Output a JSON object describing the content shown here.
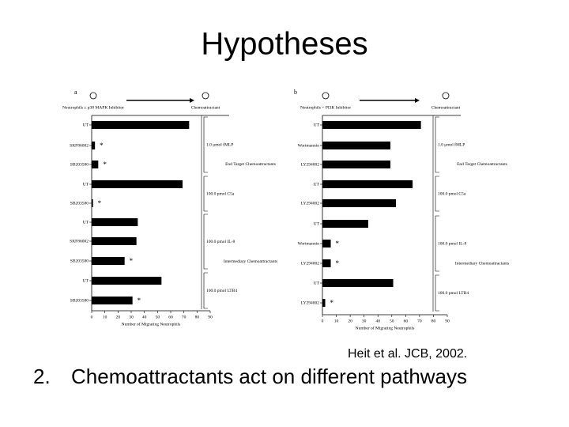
{
  "title": "Hypotheses",
  "citation": "Heit et al. JCB, 2002.",
  "bullet": {
    "number": "2.",
    "text": "Chemoattractants act on different pathways"
  },
  "chart_data": [
    {
      "type": "bar",
      "orientation": "horizontal",
      "panel": "a",
      "header_left": "Neutrophils ± p38 MAPK Inhibitor",
      "header_right": "Chemoattractant",
      "x_label": "Number of Migrating Neutrophils",
      "categories": [
        "UT",
        "SKF86002",
        "SB203580",
        "UT",
        "SB203580",
        "UT",
        "SKF86002",
        "SB203580",
        "UT",
        "SB203580"
      ],
      "values": [
        74,
        2.5,
        5,
        69,
        1,
        35,
        34,
        25,
        53,
        31
      ],
      "significance": [
        null,
        "*",
        "*",
        null,
        "*",
        null,
        null,
        "*",
        null,
        "*"
      ],
      "groups": [
        "1.0 μmol fMLP",
        "100.0 pmol C5a",
        "100.0 pmol IL-8",
        "100.0 pmol LTB4"
      ],
      "classes": [
        "End Target Chemoattractants",
        "Intermediary Chemoattractants"
      ],
      "color": "#000000",
      "xlim": [
        0,
        90
      ],
      "xticks": [
        0,
        10,
        20,
        30,
        40,
        50,
        60,
        70,
        80,
        90
      ]
    },
    {
      "type": "bar",
      "orientation": "horizontal",
      "panel": "b",
      "header_left": "Neutrophils + PI3K Inhibitor",
      "header_right": "Chemoattractant",
      "x_label": "Number of Migrating Neutrophils",
      "categories": [
        "UT",
        "Wortmannin",
        "LY294002",
        "UT",
        "LY294002",
        "UT",
        "Wortmannin",
        "LY294002",
        "UT",
        "LY294002"
      ],
      "values": [
        71,
        49,
        49,
        65,
        53,
        33,
        6,
        6,
        51,
        2
      ],
      "significance": [
        null,
        null,
        null,
        null,
        null,
        null,
        "*",
        "*",
        null,
        "*"
      ],
      "groups": [
        "1.0 μmol fMLP",
        "100.0 pmol C5a",
        "100.0 pmol IL-8",
        "100.0 pmol LTB4"
      ],
      "classes": [
        "End Target Chemoattractants",
        "Intermediary Chemoattractants"
      ],
      "color": "#000000",
      "xlim": [
        0,
        90
      ],
      "xticks": [
        0,
        10,
        20,
        30,
        40,
        50,
        60,
        70,
        80,
        90
      ]
    }
  ]
}
